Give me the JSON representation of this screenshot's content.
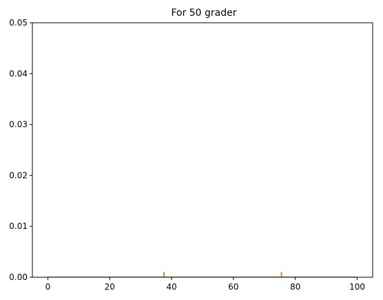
{
  "chart_data": {
    "type": "line",
    "title": "For 50 grader",
    "xlabel": "",
    "ylabel": "",
    "xlim": [
      -5,
      105
    ],
    "ylim": [
      0,
      0.05
    ],
    "x_ticks": [
      0,
      20,
      40,
      60,
      80,
      100
    ],
    "y_ticks": [
      0.0,
      0.01,
      0.02,
      0.03,
      0.04,
      0.05
    ],
    "y_tick_labels": [
      "0.00",
      "0.01",
      "0.02",
      "0.03",
      "0.04",
      "0.05"
    ],
    "grid": false,
    "legend": "none",
    "series": [
      {
        "color": "#1f77b4",
        "peaks": [
          {
            "x": 37.5,
            "width": 0.05,
            "height": 0.0009
          },
          {
            "x": 75.5,
            "width": 0.1,
            "height": 0.0009
          }
        ],
        "x_range": [
          0,
          100
        ]
      },
      {
        "color": "#ff7f0e",
        "peaks": [
          {
            "x": 37.5,
            "width": 0.05,
            "height": 0.0009
          },
          {
            "x": 75.5,
            "width": 0.05,
            "height": 0.0009
          }
        ],
        "x_range": [
          0,
          100
        ]
      }
    ]
  }
}
